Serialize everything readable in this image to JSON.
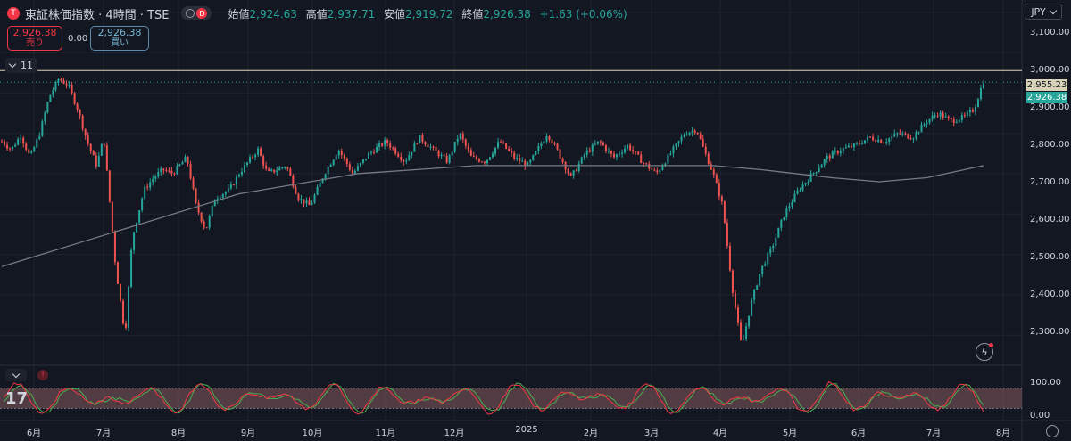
{
  "legend": {
    "symbol_badge": "T",
    "title": "東証株価指数 · 4時間 · TSE",
    "status_badge": "D",
    "open_label": "始値",
    "open": "2,924.63",
    "high_label": "高値",
    "high": "2,937.71",
    "low_label": "安値",
    "low": "2,919.72",
    "close_label": "終値",
    "close": "2,926.38",
    "change": "+1.63 (+0.06%)"
  },
  "trade": {
    "sell_price": "2,926.38",
    "sell_label": "売り",
    "spread": "0.00",
    "buy_price": "2,926.38",
    "buy_label": "買い"
  },
  "indicators_collapsed_count": "11",
  "currency": "JPY",
  "oscillator_label": "17",
  "price_tags": {
    "high_line": "2,955.23",
    "last": "2,926.38"
  },
  "colors": {
    "background": "#131722",
    "up": "#26a69a",
    "down": "#ef5350",
    "ma": "#787b86",
    "stoch_k": "#f23645",
    "stoch_d": "#4caf50",
    "band": "#9b6b6b"
  },
  "chart_data": {
    "type": "candlestick",
    "timeframe": "4時間",
    "ylim": [
      2230,
      3130
    ],
    "y_ticks": [
      "3,100.00",
      "3,000.00",
      "2,900.00",
      "2,800.00",
      "2,700.00",
      "2,600.00",
      "2,500.00",
      "2,400.00",
      "2,300.00"
    ],
    "y_tick_values": [
      3100,
      3000,
      2900,
      2800,
      2700,
      2600,
      2500,
      2400,
      2300
    ],
    "x_ticks": [
      "6月",
      "7月",
      "8月",
      "9月",
      "10月",
      "11月",
      "12月",
      "2025",
      "2月",
      "3月",
      "4月",
      "5月",
      "6月",
      "7月",
      "8月"
    ],
    "horizontal_line": 2955.23,
    "last_price": 2926.38,
    "price_path": [
      [
        0,
        2780
      ],
      [
        0.04,
        2760
      ],
      [
        0.08,
        2795
      ],
      [
        0.12,
        2740
      ],
      [
        0.16,
        2800
      ],
      [
        0.2,
        2890
      ],
      [
        0.24,
        2935
      ],
      [
        0.28,
        2920
      ],
      [
        0.32,
        2860
      ],
      [
        0.36,
        2780
      ],
      [
        0.4,
        2720
      ],
      [
        0.43,
        2790
      ],
      [
        0.48,
        2470
      ],
      [
        0.52,
        2300
      ],
      [
        0.55,
        2540
      ],
      [
        0.6,
        2660
      ],
      [
        0.64,
        2690
      ],
      [
        0.68,
        2710
      ],
      [
        0.72,
        2700
      ],
      [
        0.78,
        2740
      ],
      [
        0.82,
        2620
      ],
      [
        0.86,
        2560
      ],
      [
        0.9,
        2640
      ],
      [
        0.96,
        2660
      ],
      [
        1.0,
        2700
      ],
      [
        1.08,
        2760
      ],
      [
        1.12,
        2700
      ],
      [
        1.2,
        2720
      ],
      [
        1.25,
        2640
      ],
      [
        1.3,
        2620
      ],
      [
        1.36,
        2700
      ],
      [
        1.42,
        2760
      ],
      [
        1.48,
        2700
      ],
      [
        1.55,
        2750
      ],
      [
        1.62,
        2780
      ],
      [
        1.7,
        2730
      ],
      [
        1.76,
        2790
      ],
      [
        1.82,
        2760
      ],
      [
        1.88,
        2730
      ],
      [
        1.93,
        2800
      ],
      [
        1.98,
        2740
      ],
      [
        2.04,
        2730
      ],
      [
        2.1,
        2780
      ],
      [
        2.16,
        2740
      ],
      [
        2.22,
        2720
      ],
      [
        2.3,
        2800
      ],
      [
        2.34,
        2760
      ],
      [
        2.4,
        2690
      ],
      [
        2.46,
        2750
      ],
      [
        2.52,
        2780
      ],
      [
        2.58,
        2740
      ],
      [
        2.64,
        2770
      ],
      [
        2.7,
        2730
      ],
      [
        2.76,
        2700
      ],
      [
        2.82,
        2750
      ],
      [
        2.88,
        2800
      ],
      [
        2.93,
        2810
      ],
      [
        2.96,
        2760
      ],
      [
        3.0,
        2700
      ],
      [
        3.04,
        2620
      ],
      [
        3.08,
        2420
      ],
      [
        3.12,
        2270
      ],
      [
        3.16,
        2380
      ],
      [
        3.2,
        2460
      ],
      [
        3.25,
        2520
      ],
      [
        3.3,
        2600
      ],
      [
        3.36,
        2660
      ],
      [
        3.42,
        2700
      ],
      [
        3.48,
        2740
      ],
      [
        3.54,
        2760
      ],
      [
        3.6,
        2770
      ],
      [
        3.66,
        2790
      ],
      [
        3.72,
        2780
      ],
      [
        3.78,
        2800
      ],
      [
        3.84,
        2790
      ],
      [
        3.9,
        2830
      ],
      [
        3.95,
        2850
      ],
      [
        4.0,
        2830
      ],
      [
        4.06,
        2840
      ],
      [
        4.1,
        2860
      ],
      [
        4.14,
        2930
      ]
    ],
    "moving_average": [
      [
        0,
        2470
      ],
      [
        0.5,
        2560
      ],
      [
        1.0,
        2650
      ],
      [
        1.5,
        2700
      ],
      [
        2.0,
        2720
      ],
      [
        2.5,
        2720
      ],
      [
        3.0,
        2720
      ],
      [
        3.2,
        2710
      ],
      [
        3.5,
        2690
      ],
      [
        3.7,
        2680
      ],
      [
        3.9,
        2690
      ],
      [
        4.14,
        2720
      ]
    ],
    "oscillator": {
      "ylim": [
        0,
        100
      ],
      "y_ticks": [
        "100.00",
        "0.00"
      ],
      "band": [
        20,
        80
      ]
    }
  }
}
